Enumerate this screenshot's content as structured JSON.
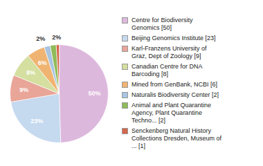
{
  "chart_data": {
    "type": "pie",
    "categories": [
      "Centre for Biodiversity\nGenomics [50]",
      "Beijing Genomics Institute [23]",
      "Karl-Franzens University of\nGraz, Dept of Zoology [9]",
      "Canadian Centre for DNA\nBarcoding [8]",
      "Mined from GenBank, NCBI [6]",
      "Naturalis Biodiversity Center [2]",
      "Animal and Plant Quarantine\nAgency, Plant Quarantine\nTechno... [2]",
      "Senckenberg Natural History\nCollections Dresden, Museum of\n... [1]"
    ],
    "values": [
      50,
      23,
      9,
      8,
      6,
      2,
      2,
      1
    ],
    "value_labels": [
      "50%",
      "23%",
      "9%",
      "8%",
      "6%",
      "2%",
      "2%",
      null
    ],
    "colors": [
      "#ddb8dd",
      "#c5d9ef",
      "#e8a598",
      "#d4dfa0",
      "#f0b472",
      "#a8c4e0",
      "#8fbb59",
      "#d4674a"
    ],
    "data_labels": true,
    "legend": "right"
  }
}
